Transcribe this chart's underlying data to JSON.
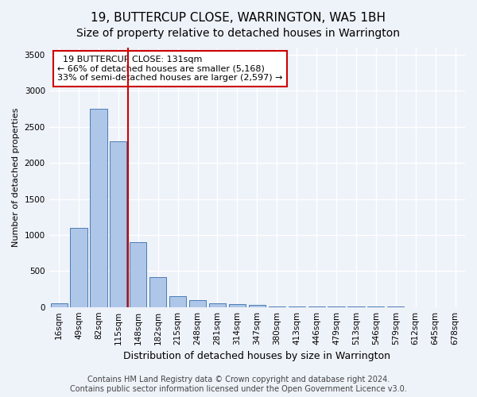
{
  "title": "19, BUTTERCUP CLOSE, WARRINGTON, WA5 1BH",
  "subtitle": "Size of property relative to detached houses in Warrington",
  "xlabel": "Distribution of detached houses by size in Warrington",
  "ylabel": "Number of detached properties",
  "categories": [
    "16sqm",
    "49sqm",
    "82sqm",
    "115sqm",
    "148sqm",
    "182sqm",
    "215sqm",
    "248sqm",
    "281sqm",
    "314sqm",
    "347sqm",
    "380sqm",
    "413sqm",
    "446sqm",
    "479sqm",
    "513sqm",
    "546sqm",
    "579sqm",
    "612sqm",
    "645sqm",
    "678sqm"
  ],
  "values": [
    50,
    1100,
    2750,
    2300,
    900,
    420,
    155,
    100,
    50,
    40,
    30,
    10,
    10,
    5,
    5,
    3,
    2,
    2,
    1,
    1,
    1
  ],
  "bar_color": "#aec6e8",
  "bar_edge_color": "#4a7db5",
  "vline_x": 3.5,
  "vline_color": "#cc0000",
  "annotation_line1": "  19 BUTTERCUP CLOSE: 131sqm",
  "annotation_line2": "← 66% of detached houses are smaller (5,168)",
  "annotation_line3": "33% of semi-detached houses are larger (2,597) →",
  "annotation_box_color": "#ffffff",
  "annotation_box_edge_color": "#cc0000",
  "ylim": [
    0,
    3600
  ],
  "yticks": [
    0,
    500,
    1000,
    1500,
    2000,
    2500,
    3000,
    3500
  ],
  "footer_line1": "Contains HM Land Registry data © Crown copyright and database right 2024.",
  "footer_line2": "Contains public sector information licensed under the Open Government Licence v3.0.",
  "bg_color": "#eef2f9",
  "plot_bg_color": "#eef2f9",
  "grid_color": "#ffffff",
  "title_fontsize": 11,
  "subtitle_fontsize": 10,
  "xlabel_fontsize": 9,
  "ylabel_fontsize": 8,
  "tick_fontsize": 7.5,
  "annot_fontsize": 8,
  "footer_fontsize": 7
}
